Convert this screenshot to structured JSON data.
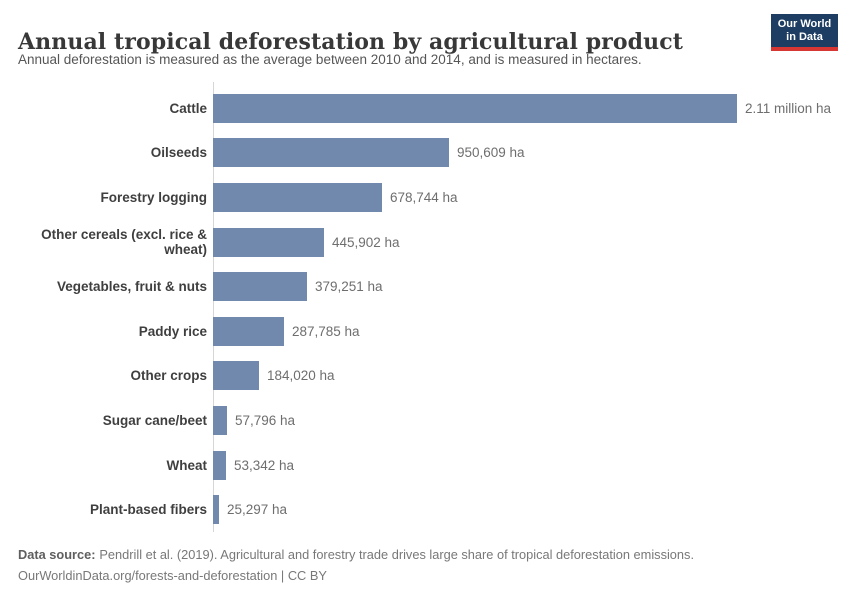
{
  "header": {
    "title": "Annual tropical deforestation by agricultural product",
    "subtitle": "Annual deforestation is measured as the average between 2010 and 2014, and is measured in hectares.",
    "logo": {
      "line1": "Our World",
      "line2": "in Data",
      "bg_color": "#1d3d63",
      "accent_color": "#d73732"
    }
  },
  "chart_data": {
    "type": "bar",
    "orientation": "horizontal",
    "title": "Annual tropical deforestation by agricultural product",
    "xlabel": "",
    "ylabel": "",
    "unit": "hectares",
    "grid": false,
    "legend": false,
    "xlim": [
      0,
      2110000
    ],
    "bar_color": "#7289ae",
    "axis_color": "#d6d6d6",
    "categories": [
      "Cattle",
      "Oilseeds",
      "Forestry logging",
      "Other cereals (excl. rice & wheat)",
      "Vegetables, fruit & nuts",
      "Paddy rice",
      "Other crops",
      "Sugar cane/beet",
      "Wheat",
      "Plant-based fibers"
    ],
    "values": [
      2110000,
      950609,
      678744,
      445902,
      379251,
      287785,
      184020,
      57796,
      53342,
      25297
    ],
    "value_labels": [
      "2.11 million ha",
      "950,609 ha",
      "678,744 ha",
      "445,902 ha",
      "379,251 ha",
      "287,785 ha",
      "184,020 ha",
      "57,796 ha",
      "53,342 ha",
      "25,297 ha"
    ]
  },
  "footer": {
    "source_label": "Data source:",
    "source_text": "Pendrill et al. (2019). Agricultural and forestry trade drives large share of tropical deforestation emissions.",
    "attribution": "OurWorldinData.org/forests-and-deforestation | CC BY"
  }
}
